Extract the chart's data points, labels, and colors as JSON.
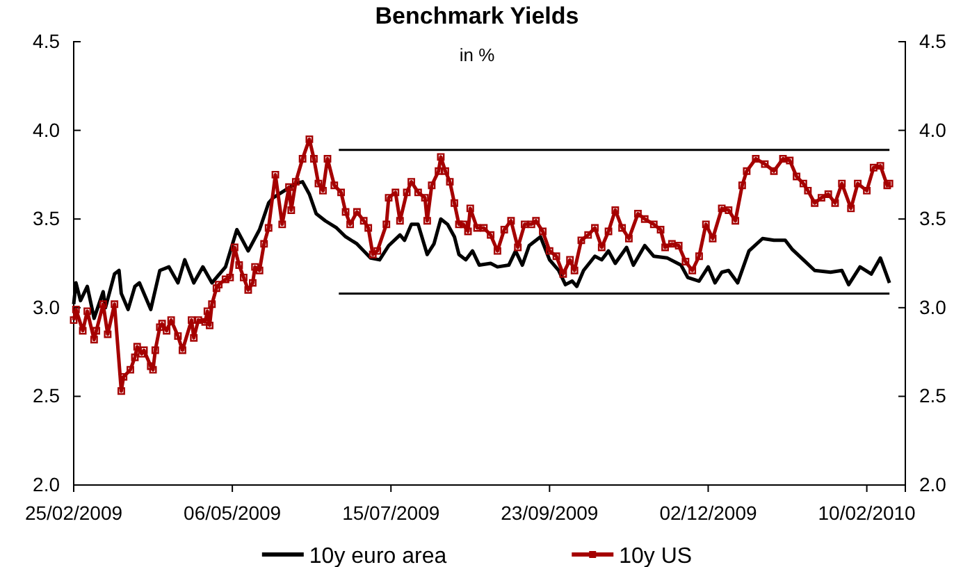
{
  "chart_data": {
    "type": "line",
    "title": "Benchmark Yields",
    "subtitle": "in %",
    "xlim": [
      "2009-02-25",
      "2010-02-27"
    ],
    "xticks": [
      {
        "value": "2009-02-25",
        "label": "25/02/2009"
      },
      {
        "value": "2009-05-06",
        "label": "06/05/2009"
      },
      {
        "value": "2009-07-15",
        "label": "15/07/2009"
      },
      {
        "value": "2009-09-23",
        "label": "23/09/2009"
      },
      {
        "value": "2009-12-02",
        "label": "02/12/2009"
      },
      {
        "value": "2010-02-10",
        "label": "10/02/2010"
      }
    ],
    "ylim": [
      2.0,
      4.5
    ],
    "yticks": [
      {
        "value": 2,
        "label": "2.0"
      },
      {
        "value": 2.5,
        "label": "2.5"
      },
      {
        "value": 3,
        "label": "3.0"
      },
      {
        "value": 3.5,
        "label": "3.5"
      },
      {
        "value": 4,
        "label": "4.0"
      },
      {
        "value": 4.5,
        "label": "4.5"
      }
    ],
    "y2lim": [
      2.0,
      4.5
    ],
    "y2ticks": [
      {
        "value": 2,
        "label": "2.0"
      },
      {
        "value": 2.5,
        "label": "2.5"
      },
      {
        "value": 3,
        "label": "3.0"
      },
      {
        "value": 3.5,
        "label": "3.5"
      },
      {
        "value": 4,
        "label": "4.0"
      },
      {
        "value": 4.5,
        "label": "4.5"
      }
    ],
    "grid": false,
    "legend": "bottom",
    "series": [
      {
        "name": "10y euro area",
        "color": "#000000",
        "marker": "none",
        "x": [
          "2009-02-25",
          "2009-02-26",
          "2009-02-28",
          "2009-03-03",
          "2009-03-06",
          "2009-03-10",
          "2009-03-11",
          "2009-03-15",
          "2009-03-17",
          "2009-03-18",
          "2009-03-21",
          "2009-03-24",
          "2009-03-26",
          "2009-03-31",
          "2009-04-04",
          "2009-04-08",
          "2009-04-12",
          "2009-04-15",
          "2009-04-19",
          "2009-04-23",
          "2009-04-27",
          "2009-05-03",
          "2009-05-08",
          "2009-05-13",
          "2009-05-18",
          "2009-05-22",
          "2009-05-24",
          "2009-05-29",
          "2009-06-03",
          "2009-06-06",
          "2009-06-09",
          "2009-06-12",
          "2009-06-16",
          "2009-06-21",
          "2009-06-25",
          "2009-06-30",
          "2009-07-03",
          "2009-07-06",
          "2009-07-10",
          "2009-07-14",
          "2009-07-19",
          "2009-07-21",
          "2009-07-24",
          "2009-07-27",
          "2009-07-31",
          "2009-08-03",
          "2009-08-06",
          "2009-08-09",
          "2009-08-12",
          "2009-08-14",
          "2009-08-17",
          "2009-08-20",
          "2009-08-23",
          "2009-08-28",
          "2009-08-31",
          "2009-09-05",
          "2009-09-08",
          "2009-09-11",
          "2009-09-14",
          "2009-09-19",
          "2009-09-23",
          "2009-09-27",
          "2009-09-30",
          "2009-10-03",
          "2009-10-05",
          "2009-10-08",
          "2009-10-13",
          "2009-10-16",
          "2009-10-19",
          "2009-10-22",
          "2009-10-27",
          "2009-10-30",
          "2009-11-04",
          "2009-11-08",
          "2009-11-14",
          "2009-11-20",
          "2009-11-23",
          "2009-11-28",
          "2009-12-02",
          "2009-12-05",
          "2009-12-08",
          "2009-12-11",
          "2009-12-15",
          "2009-12-20",
          "2009-12-26",
          "2009-12-31",
          "2010-01-05",
          "2010-01-08",
          "2010-01-13",
          "2010-01-18",
          "2010-01-25",
          "2010-01-30",
          "2010-02-02",
          "2010-02-07",
          "2010-02-12",
          "2010-02-16",
          "2010-02-20"
        ],
        "values": [
          3.02,
          3.14,
          3.04,
          3.12,
          2.94,
          3.09,
          3.0,
          3.19,
          3.21,
          3.08,
          2.99,
          3.12,
          3.14,
          2.99,
          3.21,
          3.23,
          3.14,
          3.27,
          3.14,
          3.23,
          3.14,
          3.23,
          3.44,
          3.32,
          3.44,
          3.59,
          3.62,
          3.66,
          3.7,
          3.71,
          3.64,
          3.53,
          3.49,
          3.45,
          3.4,
          3.36,
          3.32,
          3.28,
          3.27,
          3.35,
          3.41,
          3.38,
          3.47,
          3.47,
          3.3,
          3.36,
          3.5,
          3.47,
          3.4,
          3.3,
          3.27,
          3.32,
          3.24,
          3.25,
          3.23,
          3.24,
          3.32,
          3.24,
          3.35,
          3.4,
          3.27,
          3.21,
          3.13,
          3.15,
          3.12,
          3.21,
          3.29,
          3.27,
          3.32,
          3.25,
          3.34,
          3.24,
          3.35,
          3.29,
          3.28,
          3.24,
          3.17,
          3.15,
          3.23,
          3.14,
          3.2,
          3.21,
          3.14,
          3.32,
          3.39,
          3.38,
          3.38,
          3.33,
          3.27,
          3.21,
          3.2,
          3.21,
          3.13,
          3.23,
          3.19,
          3.28,
          3.14
        ]
      },
      {
        "name": "10y US",
        "color": "#a50000",
        "marker": "square",
        "x": [
          "2009-02-25",
          "2009-02-26",
          "2009-03-01",
          "2009-03-03",
          "2009-03-06",
          "2009-03-07",
          "2009-03-10",
          "2009-03-12",
          "2009-03-15",
          "2009-03-18",
          "2009-03-19",
          "2009-03-22",
          "2009-03-24",
          "2009-03-25",
          "2009-03-27",
          "2009-03-28",
          "2009-03-31",
          "2009-04-01",
          "2009-04-02",
          "2009-04-04",
          "2009-04-05",
          "2009-04-07",
          "2009-04-09",
          "2009-04-12",
          "2009-04-14",
          "2009-04-18",
          "2009-04-19",
          "2009-04-21",
          "2009-04-24",
          "2009-04-25",
          "2009-04-26",
          "2009-04-27",
          "2009-04-29",
          "2009-04-30",
          "2009-05-03",
          "2009-05-05",
          "2009-05-07",
          "2009-05-09",
          "2009-05-11",
          "2009-05-13",
          "2009-05-15",
          "2009-05-16",
          "2009-05-18",
          "2009-05-20",
          "2009-05-22",
          "2009-05-25",
          "2009-05-28",
          "2009-05-31",
          "2009-06-01",
          "2009-06-03",
          "2009-06-06",
          "2009-06-09",
          "2009-06-11",
          "2009-06-13",
          "2009-06-15",
          "2009-06-17",
          "2009-06-20",
          "2009-06-23",
          "2009-06-25",
          "2009-06-27",
          "2009-06-30",
          "2009-07-03",
          "2009-07-05",
          "2009-07-07",
          "2009-07-09",
          "2009-07-13",
          "2009-07-14",
          "2009-07-17",
          "2009-07-19",
          "2009-07-22",
          "2009-07-24",
          "2009-07-27",
          "2009-07-30",
          "2009-07-31",
          "2009-08-02",
          "2009-08-05",
          "2009-08-06",
          "2009-08-08",
          "2009-08-10",
          "2009-08-12",
          "2009-08-14",
          "2009-08-16",
          "2009-08-18",
          "2009-08-19",
          "2009-08-22",
          "2009-08-25",
          "2009-08-28",
          "2009-08-31",
          "2009-09-03",
          "2009-09-06",
          "2009-09-09",
          "2009-09-12",
          "2009-09-15",
          "2009-09-17",
          "2009-09-20",
          "2009-09-23",
          "2009-09-26",
          "2009-09-29",
          "2009-10-02",
          "2009-10-04",
          "2009-10-07",
          "2009-10-10",
          "2009-10-13",
          "2009-10-16",
          "2009-10-19",
          "2009-10-22",
          "2009-10-25",
          "2009-10-28",
          "2009-11-01",
          "2009-11-04",
          "2009-11-08",
          "2009-11-11",
          "2009-11-13",
          "2009-11-16",
          "2009-11-19",
          "2009-11-22",
          "2009-11-25",
          "2009-11-28",
          "2009-12-01",
          "2009-12-04",
          "2009-12-08",
          "2009-12-11",
          "2009-12-14",
          "2009-12-17",
          "2009-12-19",
          "2009-12-23",
          "2009-12-27",
          "2009-12-31",
          "2010-01-04",
          "2010-01-07",
          "2010-01-10",
          "2010-01-13",
          "2010-01-15",
          "2010-01-18",
          "2010-01-21",
          "2010-01-24",
          "2010-01-27",
          "2010-01-30",
          "2010-02-03",
          "2010-02-06",
          "2010-02-10",
          "2010-02-13",
          "2010-02-16",
          "2010-02-19",
          "2010-02-20"
        ],
        "values": [
          2.93,
          2.99,
          2.87,
          2.98,
          2.82,
          2.87,
          3.02,
          2.85,
          3.02,
          2.53,
          2.61,
          2.65,
          2.72,
          2.78,
          2.74,
          2.76,
          2.67,
          2.65,
          2.76,
          2.89,
          2.91,
          2.87,
          2.93,
          2.84,
          2.76,
          2.93,
          2.83,
          2.93,
          2.92,
          2.98,
          2.9,
          3.02,
          3.11,
          3.13,
          3.16,
          3.17,
          3.34,
          3.24,
          3.17,
          3.1,
          3.14,
          3.23,
          3.21,
          3.36,
          3.45,
          3.75,
          3.47,
          3.68,
          3.55,
          3.71,
          3.84,
          3.95,
          3.84,
          3.7,
          3.66,
          3.84,
          3.69,
          3.65,
          3.54,
          3.47,
          3.54,
          3.49,
          3.45,
          3.3,
          3.32,
          3.47,
          3.62,
          3.65,
          3.49,
          3.65,
          3.71,
          3.65,
          3.62,
          3.49,
          3.69,
          3.77,
          3.85,
          3.77,
          3.71,
          3.59,
          3.47,
          3.47,
          3.43,
          3.56,
          3.45,
          3.45,
          3.41,
          3.32,
          3.44,
          3.49,
          3.34,
          3.47,
          3.47,
          3.49,
          3.43,
          3.32,
          3.29,
          3.19,
          3.27,
          3.21,
          3.38,
          3.41,
          3.45,
          3.34,
          3.43,
          3.55,
          3.45,
          3.39,
          3.53,
          3.5,
          3.47,
          3.44,
          3.34,
          3.36,
          3.35,
          3.26,
          3.21,
          3.29,
          3.47,
          3.39,
          3.56,
          3.55,
          3.49,
          3.69,
          3.77,
          3.84,
          3.81,
          3.77,
          3.84,
          3.83,
          3.74,
          3.7,
          3.66,
          3.59,
          3.62,
          3.64,
          3.59,
          3.7,
          3.56,
          3.7,
          3.66,
          3.79,
          3.8,
          3.69,
          3.7
        ]
      },
      {
        "color": "#000000",
        "marker": "none",
        "x": [
          "2009-06-22",
          "2010-02-20"
        ],
        "values": [
          3.89,
          3.89
        ]
      },
      {
        "color": "#000000",
        "marker": "none",
        "x": [
          "2009-06-22",
          "2010-02-20"
        ],
        "values": [
          3.08,
          3.08
        ]
      }
    ]
  }
}
